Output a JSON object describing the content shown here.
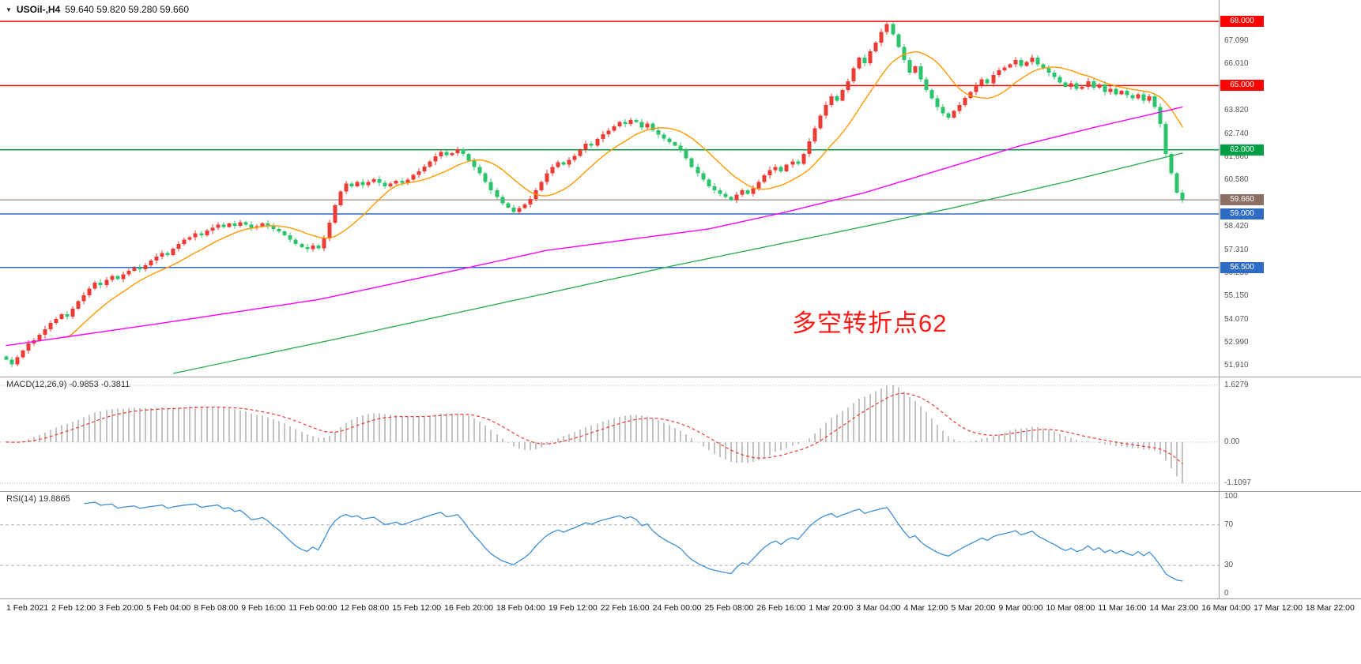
{
  "header": {
    "symbol": "USOil-,H4",
    "ohlc": "59.640 59.820 59.280 59.660"
  },
  "annotation": {
    "text": "多空转折点62",
    "color": "#ff1a1a"
  },
  "price_axis": {
    "tick_labels": [
      "67.090",
      "66.010",
      "63.820",
      "62.740",
      "61.660",
      "60.580",
      "58.420",
      "57.310",
      "56.230",
      "55.150",
      "54.070",
      "52.990",
      "51.910"
    ]
  },
  "time_axis": {
    "labels": [
      "1 Feb 2021",
      "2 Feb 12:00",
      "3 Feb 20:00",
      "5 Feb 04:00",
      "8 Feb 08:00",
      "9 Feb 16:00",
      "11 Feb 00:00",
      "12 Feb 08:00",
      "15 Feb 12:00",
      "16 Feb 20:00",
      "18 Feb 04:00",
      "19 Feb 12:00",
      "22 Feb 16:00",
      "24 Feb 00:00",
      "25 Feb 08:00",
      "26 Feb 16:00",
      "1 Mar 20:00",
      "3 Mar 04:00",
      "4 Mar 12:00",
      "5 Mar 20:00",
      "9 Mar 00:00",
      "10 Mar 08:00",
      "11 Mar 16:00",
      "14 Mar 23:00",
      "16 Mar 04:00",
      "17 Mar 12:00",
      "18 Mar 22:00"
    ]
  },
  "chart_data": [
    {
      "type": "candlestick",
      "title": "USOil H4",
      "timeframe": "H4",
      "ylim": [
        51.4,
        69.0
      ],
      "bars_per_label": 8,
      "first_open": 52.35,
      "up_color": "#ea3b34",
      "down_color": "#2bc46d",
      "closes": [
        52.2,
        51.98,
        52.3,
        52.62,
        52.95,
        53.1,
        53.35,
        53.62,
        53.9,
        54.1,
        54.32,
        54.2,
        54.58,
        54.92,
        55.2,
        55.52,
        55.8,
        55.68,
        55.92,
        56.1,
        55.95,
        56.18,
        56.35,
        56.5,
        56.42,
        56.6,
        56.82,
        57.0,
        57.18,
        57.08,
        57.38,
        57.6,
        57.8,
        57.92,
        58.1,
        58.0,
        58.22,
        58.36,
        58.5,
        58.4,
        58.55,
        58.45,
        58.62,
        58.5,
        58.35,
        58.42,
        58.55,
        58.45,
        58.3,
        58.18,
        58.0,
        57.8,
        57.6,
        57.45,
        57.35,
        57.52,
        57.4,
        57.85,
        58.6,
        59.4,
        60.05,
        60.42,
        60.3,
        60.5,
        60.35,
        60.5,
        60.62,
        60.45,
        60.3,
        60.42,
        60.55,
        60.45,
        60.6,
        60.82,
        61.0,
        61.22,
        61.45,
        61.7,
        61.9,
        61.75,
        61.85,
        62.02,
        61.8,
        61.5,
        61.2,
        60.9,
        60.5,
        60.1,
        59.8,
        59.5,
        59.3,
        59.1,
        59.28,
        59.45,
        59.7,
        60.1,
        60.5,
        60.9,
        61.2,
        61.42,
        61.3,
        61.52,
        61.72,
        62.0,
        62.28,
        62.2,
        62.5,
        62.72,
        62.9,
        63.1,
        63.3,
        63.2,
        63.4,
        63.3,
        63.05,
        63.22,
        62.92,
        62.7,
        62.52,
        62.35,
        62.2,
        62.0,
        61.6,
        61.2,
        60.9,
        60.6,
        60.3,
        60.1,
        59.95,
        59.8,
        59.65,
        59.9,
        60.1,
        59.95,
        60.2,
        60.5,
        60.8,
        61.05,
        61.2,
        61.0,
        61.3,
        61.45,
        61.35,
        61.8,
        62.4,
        63.0,
        63.6,
        64.1,
        64.5,
        64.3,
        64.8,
        65.2,
        65.8,
        66.3,
        66.05,
        66.6,
        67.0,
        67.5,
        67.88,
        67.4,
        66.8,
        66.2,
        65.6,
        65.9,
        65.3,
        64.8,
        64.4,
        64.0,
        63.7,
        63.5,
        63.82,
        64.1,
        64.42,
        64.7,
        65.0,
        65.3,
        65.1,
        65.5,
        65.72,
        65.85,
        66.0,
        66.2,
        65.92,
        66.1,
        66.3,
        66.0,
        65.8,
        65.6,
        65.4,
        65.15,
        64.95,
        65.1,
        64.85,
        64.95,
        65.2,
        64.9,
        65.05,
        64.7,
        64.85,
        64.6,
        64.75,
        64.55,
        64.4,
        64.6,
        64.3,
        64.5,
        64.0,
        63.2,
        61.8,
        60.9,
        60.0,
        59.66
      ],
      "hlines": [
        {
          "price": 68.0,
          "label": "68.000",
          "color": "#ff0000"
        },
        {
          "price": 65.0,
          "label": "65.000",
          "color": "#ff0000"
        },
        {
          "price": 62.0,
          "label": "62.000",
          "color": "#009e45"
        },
        {
          "price": 59.0,
          "label": "59.000",
          "color": "#2e6bc4"
        },
        {
          "price": 56.5,
          "label": "56.500",
          "color": "#2e6bc4"
        }
      ],
      "current_price": {
        "value": 59.66,
        "label": "59.660",
        "color": "#8d6e63"
      },
      "moving_averages": [
        {
          "name": "ma-fast-line",
          "color": "#ff9900",
          "method": "sma",
          "period": 12
        },
        {
          "name": "ma-medium-line",
          "color": "#ff00ff",
          "waypoints": [
            [
              0,
              52.85
            ],
            [
              28,
              53.9
            ],
            [
              56,
              55.0
            ],
            [
              83,
              56.5
            ],
            [
              97,
              57.3
            ],
            [
              126,
              58.3
            ],
            [
              140,
              59.1
            ],
            [
              154,
              60.0
            ],
            [
              168,
              61.1
            ],
            [
              182,
              62.2
            ],
            [
              196,
              63.1
            ],
            [
              211,
              64.0
            ]
          ]
        },
        {
          "name": "ma-slow-line",
          "color": "#2fae53",
          "waypoints": [
            [
              30,
              51.55
            ],
            [
              60,
              53.2
            ],
            [
              90,
              54.9
            ],
            [
              120,
              56.6
            ],
            [
              150,
              58.2
            ],
            [
              170,
              59.3
            ],
            [
              190,
              60.5
            ],
            [
              211,
              61.85
            ]
          ]
        }
      ]
    },
    {
      "type": "macd",
      "label": "MACD(12,26,9)",
      "values": "-0.9853 -0.3811",
      "fast": 12,
      "slow": 26,
      "signal": 9,
      "axis_labels": {
        "max": "1.6279",
        "zero": "0.00",
        "min": "-1.1097"
      },
      "histogram_color": "#c4c4c4",
      "signal_color": "#f03b32"
    },
    {
      "type": "rsi",
      "label": "RSI(14)",
      "value": "19.8865",
      "period": 14,
      "axis_labels": [
        "100",
        "70",
        "30",
        "0"
      ],
      "levels": [
        70,
        30
      ],
      "line_color": "#3f8fd6"
    }
  ]
}
